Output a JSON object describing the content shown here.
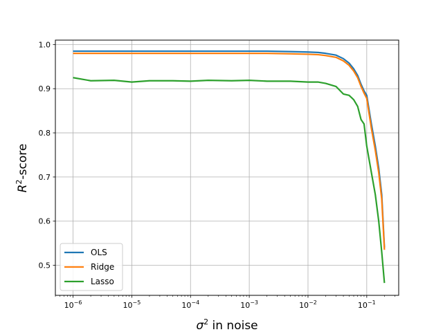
{
  "chart_data": {
    "type": "line",
    "title": "",
    "xlabel_prefix": "σ",
    "xlabel_sup": "2",
    "xlabel_suffix": " in noise",
    "ylabel_prefix": "R",
    "ylabel_sup": "2",
    "ylabel_suffix": "-score",
    "x_scale": "log",
    "xlim": [
      5e-07,
      0.35
    ],
    "ylim": [
      0.432,
      1.01
    ],
    "grid": true,
    "legend_position": "lower-left",
    "x_ticks": [
      {
        "base": "10",
        "exp": "−6"
      },
      {
        "base": "10",
        "exp": "−5"
      },
      {
        "base": "10",
        "exp": "−4"
      },
      {
        "base": "10",
        "exp": "−3"
      },
      {
        "base": "10",
        "exp": "−2"
      },
      {
        "base": "10",
        "exp": "−1"
      }
    ],
    "y_ticks": [
      "0.5",
      "0.6",
      "0.7",
      "0.8",
      "0.9",
      "1.0"
    ],
    "x": [
      1e-06,
      2e-06,
      5e-06,
      1e-05,
      2e-05,
      5e-05,
      0.0001,
      0.0002,
      0.0005,
      0.001,
      0.002,
      0.005,
      0.01,
      0.015,
      0.02,
      0.03,
      0.04,
      0.05,
      0.06,
      0.07,
      0.08,
      0.09,
      0.1,
      0.12,
      0.14,
      0.16,
      0.18,
      0.2
    ],
    "series": [
      {
        "name": "OLS",
        "color": "#1f77b4",
        "values": [
          0.985,
          0.985,
          0.985,
          0.985,
          0.985,
          0.985,
          0.985,
          0.985,
          0.985,
          0.985,
          0.985,
          0.984,
          0.983,
          0.982,
          0.98,
          0.976,
          0.968,
          0.958,
          0.945,
          0.93,
          0.91,
          0.895,
          0.885,
          0.82,
          0.77,
          0.72,
          0.66,
          0.54
        ]
      },
      {
        "name": "Ridge",
        "color": "#ff7f0e",
        "values": [
          0.98,
          0.98,
          0.98,
          0.98,
          0.98,
          0.98,
          0.98,
          0.98,
          0.98,
          0.98,
          0.98,
          0.979,
          0.978,
          0.977,
          0.975,
          0.971,
          0.963,
          0.953,
          0.94,
          0.925,
          0.905,
          0.89,
          0.878,
          0.81,
          0.76,
          0.71,
          0.65,
          0.535
        ]
      },
      {
        "name": "Lasso",
        "color": "#2ca02c",
        "values": [
          0.925,
          0.918,
          0.919,
          0.915,
          0.918,
          0.918,
          0.917,
          0.919,
          0.918,
          0.919,
          0.917,
          0.917,
          0.915,
          0.915,
          0.912,
          0.905,
          0.888,
          0.885,
          0.875,
          0.86,
          0.83,
          0.82,
          0.77,
          0.71,
          0.66,
          0.6,
          0.53,
          0.46
        ]
      }
    ]
  }
}
